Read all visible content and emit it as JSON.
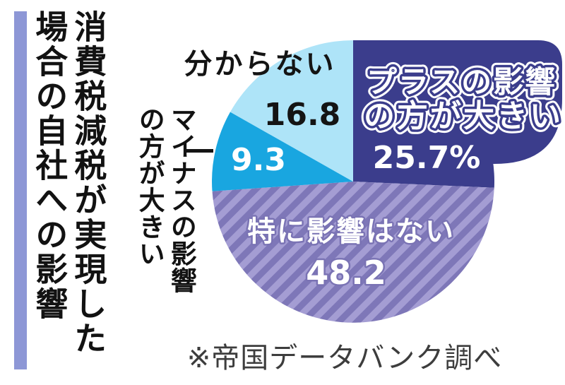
{
  "title": {
    "lines": [
      "消費税減税が実現した",
      "場合の自社への影響"
    ]
  },
  "chart_data": {
    "type": "pie",
    "title": "消費税減税が実現した場合の自社への影響",
    "start_angle_deg": 0,
    "direction": "clockwise",
    "center": [
      500,
      257
    ],
    "radius": 200,
    "source": "※帝国データバンク調べ",
    "slices": [
      {
        "label": "プラスの影響の方が大きい",
        "label_lines": [
          "プラスの影響",
          "の方が大きい"
        ],
        "value": 25.7,
        "display": "25.7%",
        "color": "#3b3d8c",
        "pattern": "solid"
      },
      {
        "label": "特に影響はない",
        "value": 48.2,
        "display": "48.2",
        "color": "#7e77b8",
        "pattern": "diagonal-stripes",
        "stripe_color": "#a49dd3"
      },
      {
        "label": "マイナスの影響の方が大きい",
        "label_lines": [
          "マイナスの影響",
          "の方が大きい"
        ],
        "value": 9.3,
        "display": "9.3",
        "color": "#19a6e0",
        "pattern": "solid"
      },
      {
        "label": "分からない",
        "value": 16.8,
        "display": "16.8",
        "color": "#aee4f8",
        "pattern": "solid"
      }
    ]
  },
  "source_note": "※帝国データバンク調べ",
  "colors": {
    "accent_bar": "#8d97d6",
    "plus_navy": "#3b3d8c",
    "none_purple": "#7e77b8",
    "none_purple_stripe": "#a49dd3",
    "minus_blue": "#19a6e0",
    "unknown_cyan": "#aee4f8",
    "text_black": "#141414",
    "source_gray": "#3d3d3d"
  }
}
